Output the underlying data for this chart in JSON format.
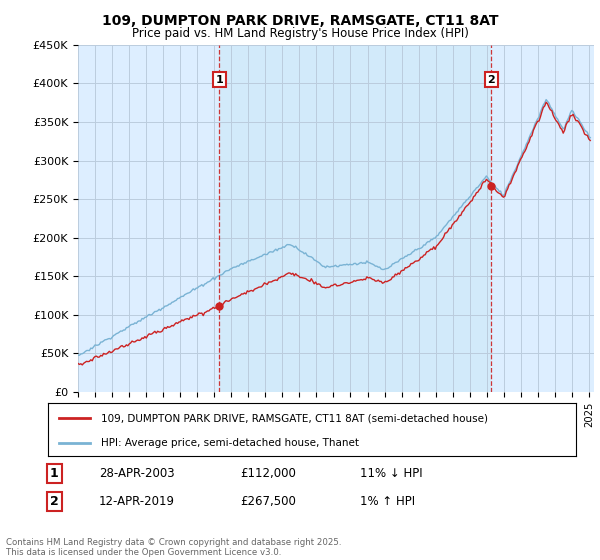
{
  "title_line1": "109, DUMPTON PARK DRIVE, RAMSGATE, CT11 8AT",
  "title_line2": "Price paid vs. HM Land Registry's House Price Index (HPI)",
  "ylim": [
    0,
    450000
  ],
  "yticks": [
    0,
    50000,
    100000,
    150000,
    200000,
    250000,
    300000,
    350000,
    400000,
    450000
  ],
  "ytick_labels": [
    "£0",
    "£50K",
    "£100K",
    "£150K",
    "£200K",
    "£250K",
    "£300K",
    "£350K",
    "£400K",
    "£450K"
  ],
  "hpi_color": "#7ab3d4",
  "price_color": "#cc2222",
  "plot_bg": "#ddeeff",
  "highlight_bg": "#cce0f0",
  "marker1_year": 2003.3,
  "marker1_price": 112000,
  "marker1_label": "1",
  "marker1_date": "28-APR-2003",
  "marker1_pct": "11% ↓ HPI",
  "marker2_year": 2019.28,
  "marker2_price": 267500,
  "marker2_label": "2",
  "marker2_date": "12-APR-2019",
  "marker2_pct": "1% ↑ HPI",
  "legend_line1": "109, DUMPTON PARK DRIVE, RAMSGATE, CT11 8AT (semi-detached house)",
  "legend_line2": "HPI: Average price, semi-detached house, Thanet",
  "footer": "Contains HM Land Registry data © Crown copyright and database right 2025.\nThis data is licensed under the Open Government Licence v3.0.",
  "background_color": "#ffffff",
  "grid_color": "#bbccdd"
}
